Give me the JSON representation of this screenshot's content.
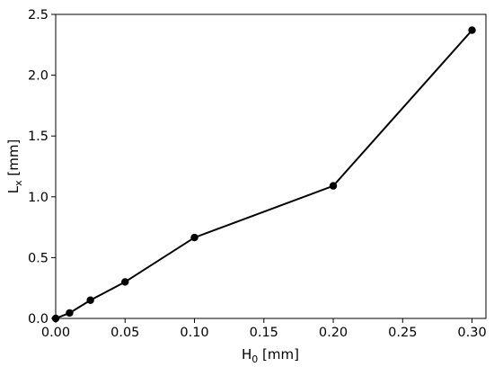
{
  "chart_data": {
    "type": "line",
    "x": [
      0.0,
      0.01,
      0.025,
      0.05,
      0.1,
      0.2,
      0.3
    ],
    "series": [
      {
        "values": [
          0.0,
          0.045,
          0.15,
          0.3,
          0.665,
          1.09,
          2.37
        ],
        "color": "#000000"
      }
    ],
    "xlabel": {
      "base": "H",
      "sub": "0",
      "unit": " [mm]"
    },
    "ylabel": {
      "base": "L",
      "sub": "x",
      "unit": " [mm]"
    },
    "xlim": [
      0.0,
      0.31
    ],
    "ylim": [
      0.0,
      2.5
    ],
    "xticks": [
      0.0,
      0.05,
      0.1,
      0.15,
      0.2,
      0.25,
      0.3
    ],
    "xtick_labels": [
      "0.00",
      "0.05",
      "0.10",
      "0.15",
      "0.20",
      "0.25",
      "0.30"
    ],
    "yticks": [
      0.0,
      0.5,
      1.0,
      1.5,
      2.0,
      2.5
    ],
    "ytick_labels": [
      "0.0",
      "0.5",
      "1.0",
      "1.5",
      "2.0",
      "2.5"
    ],
    "grid": false,
    "marker": "circle"
  }
}
